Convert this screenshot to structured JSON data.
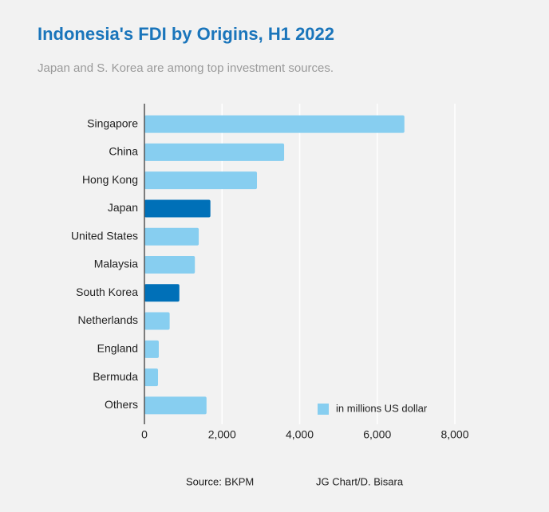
{
  "chart_data": {
    "type": "bar",
    "orientation": "horizontal",
    "title": "Indonesia's FDI by Origins, H1 2022",
    "subtitle": "Japan and S. Korea are among top investment sources.",
    "categories": [
      "Singapore",
      "China",
      "Hong Kong",
      "Japan",
      "United States",
      "Malaysia",
      "South Korea",
      "Netherlands",
      "England",
      "Bermuda",
      "Others"
    ],
    "series": [
      {
        "name": "in millions US dollar",
        "color": "#87cef0",
        "values": [
          6700,
          3600,
          2900,
          1700,
          1400,
          1300,
          900,
          650,
          370,
          350,
          1600
        ],
        "point_colors": [
          "#87cef0",
          "#87cef0",
          "#87cef0",
          "#0070b8",
          "#87cef0",
          "#87cef0",
          "#0070b8",
          "#87cef0",
          "#87cef0",
          "#87cef0",
          "#87cef0"
        ]
      }
    ],
    "xlim": [
      0,
      8000
    ],
    "xticks": [
      0,
      {
        "value": 2000,
        "label": "2,000"
      },
      {
        "value": 4000,
        "label": "4,000"
      },
      {
        "value": 6000,
        "label": "6,000"
      },
      {
        "value": 8000,
        "label": "8,000"
      }
    ],
    "grid": true,
    "legend": "lower right",
    "source": "Source: BKPM",
    "credit": "JG Chart/D. Bisara"
  }
}
